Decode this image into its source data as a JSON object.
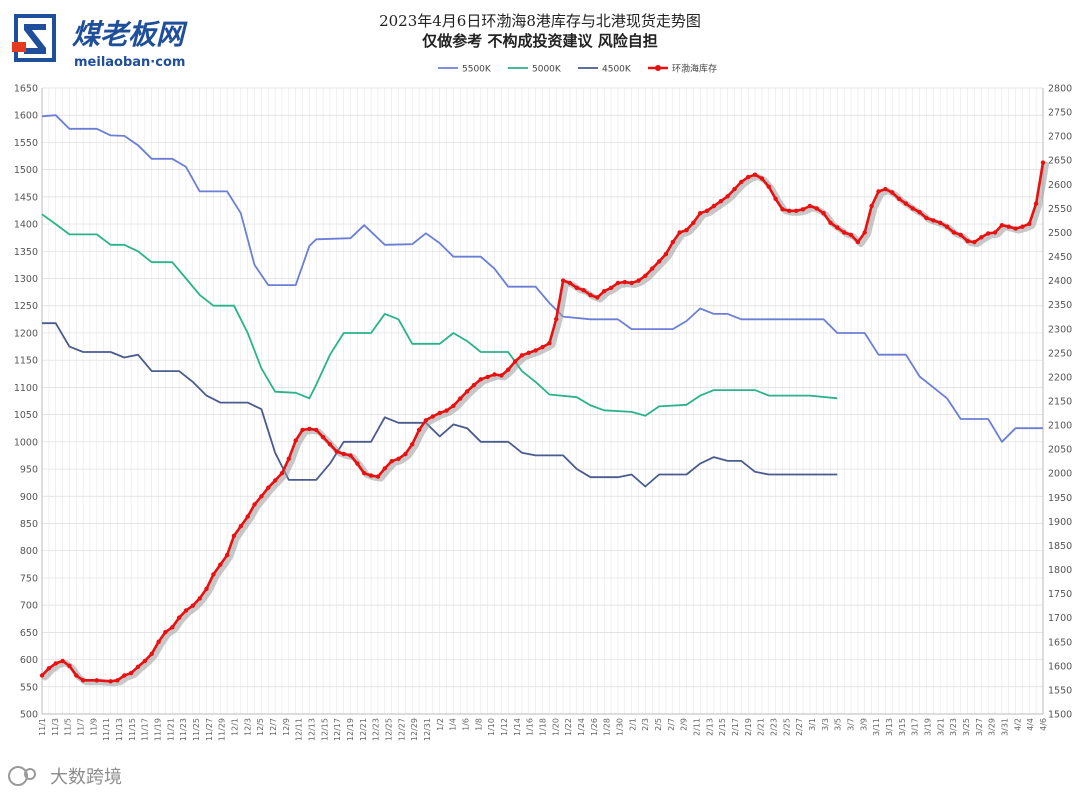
{
  "brand": {
    "name_cn": "煤老板网",
    "domain": "meilaoban·com",
    "color_primary": "#1f4e9a",
    "color_accent": "#e23b1f"
  },
  "titles": {
    "line1": "2023年4月6日环渤海8港库存与北港现货走势图",
    "line2": "仅做参考 不构成投资建议 风险自担"
  },
  "watermark": {
    "text": "大数跨境"
  },
  "chart_data": {
    "type": "line",
    "title": "2023年4月6日环渤海8港库存与北港现货走势图",
    "subtitle": "仅做参考 不构成投资建议 风险自担",
    "legend_position": "top-center",
    "grid": true,
    "y_left": {
      "min": 500,
      "max": 1650,
      "step": 50
    },
    "y_right": {
      "min": 1500,
      "max": 2800,
      "step": 50
    },
    "x_range": [
      0,
      146
    ],
    "date_tick_labels": [
      "11/1",
      "11/3",
      "11/5",
      "11/7",
      "11/9",
      "11/11",
      "11/13",
      "11/15",
      "11/17",
      "11/19",
      "11/21",
      "11/23",
      "11/25",
      "11/27",
      "11/29",
      "12/1",
      "12/3",
      "12/5",
      "12/7",
      "12/9",
      "12/11",
      "12/13",
      "12/15",
      "12/17",
      "12/19",
      "12/21",
      "12/23",
      "12/25",
      "12/27",
      "12/29",
      "12/31",
      "1/2",
      "1/4",
      "1/6",
      "1/8",
      "1/10",
      "1/12",
      "1/14",
      "1/16",
      "1/18",
      "1/20",
      "1/22",
      "1/24",
      "1/26",
      "1/28",
      "1/30",
      "2/1",
      "2/3",
      "2/5",
      "2/7",
      "2/9",
      "2/11",
      "2/13",
      "2/15",
      "2/17",
      "2/19",
      "2/21",
      "2/23",
      "2/25",
      "2/27",
      "3/1",
      "3/3",
      "3/5",
      "3/7",
      "3/9",
      "3/11",
      "3/13",
      "3/15",
      "3/17",
      "3/19",
      "3/21",
      "3/23",
      "3/25",
      "3/27",
      "3/29",
      "3/31",
      "4/2",
      "4/4",
      "4/6"
    ],
    "series": [
      {
        "name": "5500K",
        "axis": "left",
        "color": "#6b7fd7",
        "points": [
          [
            0,
            1598
          ],
          [
            2,
            1600
          ],
          [
            4,
            1575
          ],
          [
            8,
            1575
          ],
          [
            10,
            1563
          ],
          [
            12,
            1562
          ],
          [
            14,
            1545
          ],
          [
            16,
            1520
          ],
          [
            19,
            1520
          ],
          [
            21,
            1505
          ],
          [
            23,
            1460
          ],
          [
            27,
            1460
          ],
          [
            29,
            1420
          ],
          [
            31,
            1325
          ],
          [
            33,
            1288
          ],
          [
            37,
            1288
          ],
          [
            39,
            1360
          ],
          [
            40,
            1372
          ],
          [
            45,
            1374
          ],
          [
            47,
            1398
          ],
          [
            50,
            1362
          ],
          [
            54,
            1363
          ],
          [
            56,
            1383
          ],
          [
            58,
            1365
          ],
          [
            60,
            1340
          ],
          [
            64,
            1340
          ],
          [
            66,
            1318
          ],
          [
            68,
            1285
          ],
          [
            72,
            1285
          ],
          [
            74,
            1255
          ],
          [
            76,
            1230
          ],
          [
            80,
            1225
          ],
          [
            84,
            1225
          ],
          [
            86,
            1207
          ],
          [
            92,
            1207
          ],
          [
            94,
            1222
          ],
          [
            96,
            1245
          ],
          [
            98,
            1235
          ],
          [
            100,
            1235
          ],
          [
            102,
            1225
          ],
          [
            110,
            1225
          ],
          [
            114,
            1225
          ],
          [
            116,
            1200
          ],
          [
            120,
            1200
          ],
          [
            122,
            1160
          ],
          [
            126,
            1160
          ],
          [
            128,
            1120
          ],
          [
            132,
            1080
          ],
          [
            134,
            1042
          ],
          [
            138,
            1042
          ],
          [
            140,
            1000
          ],
          [
            142,
            1025
          ],
          [
            145,
            1025
          ],
          [
            146,
            1025
          ]
        ]
      },
      {
        "name": "5000K",
        "axis": "left",
        "color": "#2ab38a",
        "points": [
          [
            0,
            1418
          ],
          [
            2,
            1400
          ],
          [
            4,
            1381
          ],
          [
            8,
            1381
          ],
          [
            10,
            1362
          ],
          [
            12,
            1362
          ],
          [
            14,
            1350
          ],
          [
            16,
            1330
          ],
          [
            19,
            1330
          ],
          [
            21,
            1300
          ],
          [
            23,
            1270
          ],
          [
            25,
            1250
          ],
          [
            28,
            1250
          ],
          [
            30,
            1200
          ],
          [
            32,
            1135
          ],
          [
            34,
            1092
          ],
          [
            37,
            1090
          ],
          [
            39,
            1080
          ],
          [
            40,
            1105
          ],
          [
            42,
            1160
          ],
          [
            44,
            1200
          ],
          [
            48,
            1200
          ],
          [
            50,
            1235
          ],
          [
            52,
            1225
          ],
          [
            54,
            1180
          ],
          [
            58,
            1180
          ],
          [
            60,
            1200
          ],
          [
            62,
            1185
          ],
          [
            64,
            1165
          ],
          [
            68,
            1165
          ],
          [
            70,
            1130
          ],
          [
            72,
            1110
          ],
          [
            74,
            1087
          ],
          [
            78,
            1082
          ],
          [
            80,
            1067
          ],
          [
            82,
            1058
          ],
          [
            86,
            1055
          ],
          [
            88,
            1048
          ],
          [
            90,
            1065
          ],
          [
            94,
            1068
          ],
          [
            96,
            1085
          ],
          [
            98,
            1095
          ],
          [
            104,
            1095
          ],
          [
            106,
            1085
          ],
          [
            112,
            1085
          ],
          [
            116,
            1080
          ]
        ]
      },
      {
        "name": "4500K",
        "axis": "left",
        "color": "#4a5b8e",
        "points": [
          [
            0,
            1218
          ],
          [
            2,
            1218
          ],
          [
            4,
            1175
          ],
          [
            6,
            1165
          ],
          [
            10,
            1165
          ],
          [
            12,
            1155
          ],
          [
            14,
            1160
          ],
          [
            16,
            1130
          ],
          [
            20,
            1130
          ],
          [
            22,
            1110
          ],
          [
            24,
            1085
          ],
          [
            26,
            1072
          ],
          [
            30,
            1072
          ],
          [
            32,
            1060
          ],
          [
            34,
            980
          ],
          [
            36,
            930
          ],
          [
            40,
            930
          ],
          [
            42,
            960
          ],
          [
            44,
            1000
          ],
          [
            48,
            1000
          ],
          [
            50,
            1045
          ],
          [
            52,
            1035
          ],
          [
            56,
            1035
          ],
          [
            58,
            1010
          ],
          [
            60,
            1032
          ],
          [
            62,
            1025
          ],
          [
            64,
            1000
          ],
          [
            68,
            1000
          ],
          [
            70,
            980
          ],
          [
            72,
            975
          ],
          [
            76,
            975
          ],
          [
            78,
            950
          ],
          [
            80,
            935
          ],
          [
            84,
            935
          ],
          [
            86,
            940
          ],
          [
            88,
            918
          ],
          [
            90,
            940
          ],
          [
            94,
            940
          ],
          [
            96,
            960
          ],
          [
            98,
            972
          ],
          [
            100,
            965
          ],
          [
            102,
            965
          ],
          [
            104,
            945
          ],
          [
            106,
            940
          ],
          [
            112,
            940
          ],
          [
            116,
            940
          ]
        ]
      },
      {
        "name": "环渤海库存",
        "axis": "right",
        "color": "#e81010",
        "points": [
          [
            0,
            1580
          ],
          [
            1,
            1595
          ],
          [
            2,
            1605
          ],
          [
            3,
            1610
          ],
          [
            4,
            1600
          ],
          [
            5,
            1580
          ],
          [
            6,
            1570
          ],
          [
            8,
            1570
          ],
          [
            10,
            1568
          ],
          [
            11,
            1570
          ],
          [
            12,
            1580
          ],
          [
            13,
            1585
          ],
          [
            14,
            1598
          ],
          [
            15,
            1610
          ],
          [
            16,
            1625
          ],
          [
            17,
            1650
          ],
          [
            18,
            1670
          ],
          [
            19,
            1680
          ],
          [
            20,
            1700
          ],
          [
            21,
            1715
          ],
          [
            22,
            1725
          ],
          [
            23,
            1740
          ],
          [
            24,
            1760
          ],
          [
            25,
            1790
          ],
          [
            26,
            1810
          ],
          [
            27,
            1830
          ],
          [
            28,
            1870
          ],
          [
            29,
            1890
          ],
          [
            30,
            1910
          ],
          [
            31,
            1935
          ],
          [
            32,
            1952
          ],
          [
            33,
            1970
          ],
          [
            34,
            1985
          ],
          [
            35,
            2000
          ],
          [
            36,
            2030
          ],
          [
            37,
            2068
          ],
          [
            38,
            2090
          ],
          [
            39,
            2092
          ],
          [
            40,
            2090
          ],
          [
            41,
            2075
          ],
          [
            42,
            2060
          ],
          [
            43,
            2045
          ],
          [
            44,
            2040
          ],
          [
            45,
            2037
          ],
          [
            46,
            2020
          ],
          [
            47,
            2000
          ],
          [
            48,
            1995
          ],
          [
            49,
            1993
          ],
          [
            50,
            2010
          ],
          [
            51,
            2025
          ],
          [
            52,
            2030
          ],
          [
            53,
            2040
          ],
          [
            54,
            2060
          ],
          [
            55,
            2090
          ],
          [
            56,
            2110
          ],
          [
            57,
            2118
          ],
          [
            58,
            2125
          ],
          [
            59,
            2130
          ],
          [
            60,
            2140
          ],
          [
            61,
            2155
          ],
          [
            62,
            2170
          ],
          [
            63,
            2183
          ],
          [
            64,
            2195
          ],
          [
            65,
            2200
          ],
          [
            66,
            2205
          ],
          [
            67,
            2203
          ],
          [
            68,
            2215
          ],
          [
            69,
            2232
          ],
          [
            70,
            2245
          ],
          [
            71,
            2250
          ],
          [
            72,
            2255
          ],
          [
            73,
            2262
          ],
          [
            74,
            2270
          ],
          [
            75,
            2320
          ],
          [
            76,
            2400
          ],
          [
            77,
            2395
          ],
          [
            78,
            2385
          ],
          [
            79,
            2380
          ],
          [
            80,
            2370
          ],
          [
            81,
            2365
          ],
          [
            82,
            2378
          ],
          [
            83,
            2385
          ],
          [
            84,
            2395
          ],
          [
            85,
            2397
          ],
          [
            86,
            2395
          ],
          [
            87,
            2400
          ],
          [
            88,
            2410
          ],
          [
            89,
            2425
          ],
          [
            90,
            2440
          ],
          [
            91,
            2455
          ],
          [
            92,
            2480
          ],
          [
            93,
            2500
          ],
          [
            94,
            2505
          ],
          [
            95,
            2520
          ],
          [
            96,
            2540
          ],
          [
            97,
            2545
          ],
          [
            98,
            2555
          ],
          [
            99,
            2565
          ],
          [
            100,
            2575
          ],
          [
            101,
            2590
          ],
          [
            102,
            2605
          ],
          [
            103,
            2615
          ],
          [
            104,
            2620
          ],
          [
            105,
            2612
          ],
          [
            106,
            2595
          ],
          [
            107,
            2570
          ],
          [
            108,
            2548
          ],
          [
            109,
            2545
          ],
          [
            110,
            2545
          ],
          [
            111,
            2548
          ],
          [
            112,
            2555
          ],
          [
            113,
            2550
          ],
          [
            114,
            2540
          ],
          [
            115,
            2520
          ],
          [
            116,
            2510
          ],
          [
            117,
            2500
          ],
          [
            118,
            2495
          ],
          [
            119,
            2480
          ],
          [
            120,
            2500
          ],
          [
            121,
            2555
          ],
          [
            122,
            2585
          ],
          [
            123,
            2590
          ],
          [
            124,
            2583
          ],
          [
            125,
            2570
          ],
          [
            126,
            2560
          ],
          [
            127,
            2550
          ],
          [
            128,
            2542
          ],
          [
            129,
            2530
          ],
          [
            130,
            2525
          ],
          [
            131,
            2520
          ],
          [
            132,
            2512
          ],
          [
            133,
            2500
          ],
          [
            134,
            2495
          ],
          [
            135,
            2482
          ],
          [
            136,
            2480
          ],
          [
            137,
            2490
          ],
          [
            138,
            2498
          ],
          [
            139,
            2500
          ],
          [
            140,
            2515
          ],
          [
            141,
            2512
          ],
          [
            142,
            2508
          ],
          [
            143,
            2512
          ],
          [
            144,
            2518
          ],
          [
            145,
            2560
          ],
          [
            146,
            2645
          ]
        ]
      }
    ]
  }
}
